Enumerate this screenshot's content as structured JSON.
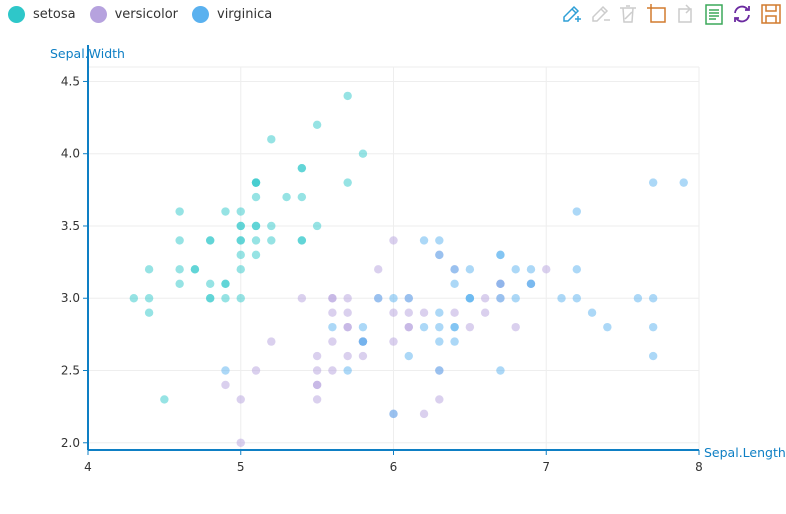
{
  "legend": {
    "items": [
      {
        "label": "setosa",
        "color": "#2ec7c9"
      },
      {
        "label": "versicolor",
        "color": "#b6a2de"
      },
      {
        "label": "virginica",
        "color": "#5ab1ef"
      }
    ]
  },
  "toolbox": {
    "icons": [
      "mark-icon",
      "mark-undo-icon",
      "mark-clear-icon",
      "data-zoom-icon",
      "data-zoom-reset-icon",
      "data-view-icon",
      "restore-icon",
      "save-as-image-icon"
    ]
  },
  "chart_data": {
    "type": "scatter",
    "title": "",
    "xlabel": "Sepal.Length",
    "ylabel": "Sepal.Width",
    "xlim": [
      4,
      8
    ],
    "ylim": [
      1.95,
      4.6
    ],
    "x_ticks": [
      "4",
      "5",
      "6",
      "7",
      "8"
    ],
    "y_ticks": [
      "2.0",
      "2.5",
      "3.0",
      "3.5",
      "4.0",
      "4.5"
    ],
    "grid": true,
    "legend_position": "top-left",
    "series": [
      {
        "name": "setosa",
        "color": "#2ec7c9",
        "points": [
          [
            5.1,
            3.5
          ],
          [
            4.9,
            3.0
          ],
          [
            4.7,
            3.2
          ],
          [
            4.6,
            3.1
          ],
          [
            5.0,
            3.6
          ],
          [
            5.4,
            3.9
          ],
          [
            4.6,
            3.4
          ],
          [
            5.0,
            3.4
          ],
          [
            4.4,
            2.9
          ],
          [
            4.9,
            3.1
          ],
          [
            5.4,
            3.7
          ],
          [
            4.8,
            3.4
          ],
          [
            4.8,
            3.0
          ],
          [
            4.3,
            3.0
          ],
          [
            5.8,
            4.0
          ],
          [
            5.7,
            4.4
          ],
          [
            5.4,
            3.9
          ],
          [
            5.1,
            3.5
          ],
          [
            5.7,
            3.8
          ],
          [
            5.1,
            3.8
          ],
          [
            5.4,
            3.4
          ],
          [
            5.1,
            3.7
          ],
          [
            4.6,
            3.6
          ],
          [
            5.1,
            3.3
          ],
          [
            4.8,
            3.4
          ],
          [
            5.0,
            3.0
          ],
          [
            5.0,
            3.4
          ],
          [
            5.2,
            3.5
          ],
          [
            5.2,
            3.4
          ],
          [
            4.7,
            3.2
          ],
          [
            4.8,
            3.1
          ],
          [
            5.4,
            3.4
          ],
          [
            5.2,
            4.1
          ],
          [
            5.5,
            4.2
          ],
          [
            4.9,
            3.1
          ],
          [
            5.0,
            3.2
          ],
          [
            5.5,
            3.5
          ],
          [
            4.9,
            3.6
          ],
          [
            4.4,
            3.0
          ],
          [
            5.1,
            3.4
          ],
          [
            5.0,
            3.5
          ],
          [
            4.5,
            2.3
          ],
          [
            4.4,
            3.2
          ],
          [
            5.0,
            3.5
          ],
          [
            5.1,
            3.8
          ],
          [
            4.8,
            3.0
          ],
          [
            5.1,
            3.8
          ],
          [
            4.6,
            3.2
          ],
          [
            5.3,
            3.7
          ],
          [
            5.0,
            3.3
          ]
        ]
      },
      {
        "name": "versicolor",
        "color": "#b6a2de",
        "points": [
          [
            7.0,
            3.2
          ],
          [
            6.4,
            3.2
          ],
          [
            6.9,
            3.1
          ],
          [
            5.5,
            2.3
          ],
          [
            6.5,
            2.8
          ],
          [
            5.7,
            2.8
          ],
          [
            6.3,
            3.3
          ],
          [
            4.9,
            2.4
          ],
          [
            6.6,
            2.9
          ],
          [
            5.2,
            2.7
          ],
          [
            5.0,
            2.0
          ],
          [
            5.9,
            3.0
          ],
          [
            6.0,
            2.2
          ],
          [
            6.1,
            2.9
          ],
          [
            5.6,
            2.9
          ],
          [
            6.7,
            3.1
          ],
          [
            5.6,
            3.0
          ],
          [
            5.8,
            2.7
          ],
          [
            6.2,
            2.2
          ],
          [
            5.6,
            2.5
          ],
          [
            5.9,
            3.2
          ],
          [
            6.1,
            2.8
          ],
          [
            6.3,
            2.5
          ],
          [
            6.1,
            2.8
          ],
          [
            6.4,
            2.9
          ],
          [
            6.6,
            3.0
          ],
          [
            6.8,
            2.8
          ],
          [
            6.7,
            3.0
          ],
          [
            6.0,
            2.9
          ],
          [
            5.7,
            2.6
          ],
          [
            5.5,
            2.4
          ],
          [
            5.5,
            2.4
          ],
          [
            5.8,
            2.7
          ],
          [
            6.0,
            2.7
          ],
          [
            5.4,
            3.0
          ],
          [
            6.0,
            3.4
          ],
          [
            6.7,
            3.1
          ],
          [
            6.3,
            2.3
          ],
          [
            5.6,
            3.0
          ],
          [
            5.5,
            2.5
          ],
          [
            5.5,
            2.6
          ],
          [
            6.1,
            3.0
          ],
          [
            5.8,
            2.6
          ],
          [
            5.0,
            2.3
          ],
          [
            5.6,
            2.7
          ],
          [
            5.7,
            3.0
          ],
          [
            5.7,
            2.9
          ],
          [
            6.2,
            2.9
          ],
          [
            5.1,
            2.5
          ],
          [
            5.7,
            2.8
          ]
        ]
      },
      {
        "name": "virginica",
        "color": "#5ab1ef",
        "points": [
          [
            6.3,
            3.3
          ],
          [
            5.8,
            2.7
          ],
          [
            7.1,
            3.0
          ],
          [
            6.3,
            2.9
          ],
          [
            6.5,
            3.0
          ],
          [
            7.6,
            3.0
          ],
          [
            4.9,
            2.5
          ],
          [
            7.3,
            2.9
          ],
          [
            6.7,
            2.5
          ],
          [
            7.2,
            3.6
          ],
          [
            6.5,
            3.2
          ],
          [
            6.4,
            2.7
          ],
          [
            6.8,
            3.0
          ],
          [
            5.7,
            2.5
          ],
          [
            5.8,
            2.8
          ],
          [
            6.4,
            3.2
          ],
          [
            6.5,
            3.0
          ],
          [
            7.7,
            3.8
          ],
          [
            7.7,
            2.6
          ],
          [
            6.0,
            2.2
          ],
          [
            6.9,
            3.2
          ],
          [
            5.6,
            2.8
          ],
          [
            7.7,
            2.8
          ],
          [
            6.3,
            2.7
          ],
          [
            6.7,
            3.3
          ],
          [
            7.2,
            3.2
          ],
          [
            6.2,
            2.8
          ],
          [
            6.1,
            3.0
          ],
          [
            6.4,
            2.8
          ],
          [
            7.2,
            3.0
          ],
          [
            7.4,
            2.8
          ],
          [
            7.9,
            3.8
          ],
          [
            6.4,
            2.8
          ],
          [
            6.3,
            2.8
          ],
          [
            6.1,
            2.6
          ],
          [
            7.7,
            3.0
          ],
          [
            6.3,
            3.4
          ],
          [
            6.4,
            3.1
          ],
          [
            6.0,
            3.0
          ],
          [
            6.9,
            3.1
          ],
          [
            6.7,
            3.1
          ],
          [
            6.9,
            3.1
          ],
          [
            5.8,
            2.7
          ],
          [
            6.8,
            3.2
          ],
          [
            6.7,
            3.3
          ],
          [
            6.7,
            3.0
          ],
          [
            6.3,
            2.5
          ],
          [
            6.5,
            3.0
          ],
          [
            6.2,
            3.4
          ],
          [
            5.9,
            3.0
          ]
        ]
      }
    ]
  }
}
